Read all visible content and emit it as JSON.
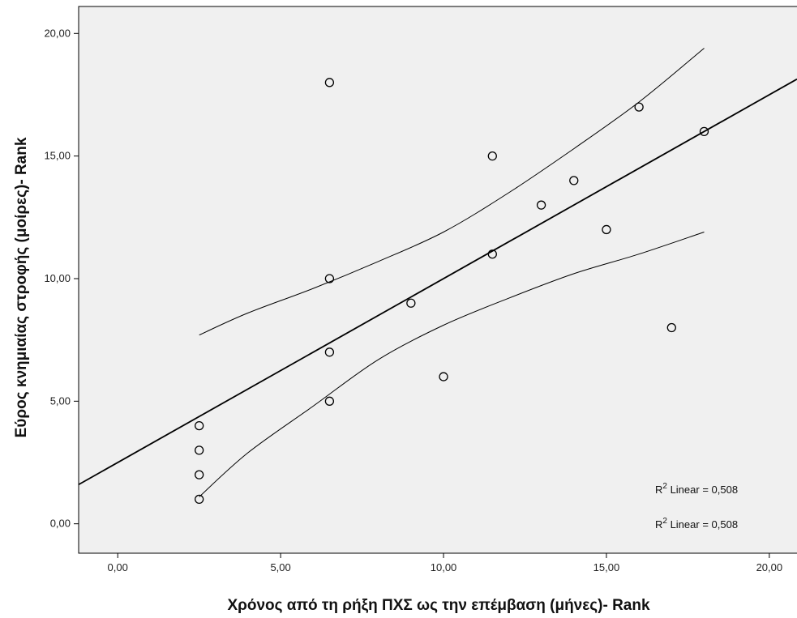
{
  "chart_data": {
    "type": "scatter",
    "xlabel": "Χρόνος από τη ρήξη ΠΧΣ ως την επέμβαση (μήνες)- Rank",
    "ylabel": "Εύρος κνημιαίας στροφής (μοίρες)- Rank",
    "xlim": [
      -1.2,
      20.85
    ],
    "ylim": [
      -1.2,
      21.1
    ],
    "x_ticks": [
      "0,00",
      "5,00",
      "10,00",
      "15,00",
      "20,00"
    ],
    "y_ticks": [
      "0,00",
      "5,00",
      "10,00",
      "15,00",
      "20,00"
    ],
    "grid": false,
    "points": [
      {
        "x": 2.5,
        "y": 1
      },
      {
        "x": 2.5,
        "y": 2
      },
      {
        "x": 2.5,
        "y": 3
      },
      {
        "x": 2.5,
        "y": 4
      },
      {
        "x": 6.5,
        "y": 5
      },
      {
        "x": 6.5,
        "y": 7
      },
      {
        "x": 6.5,
        "y": 10
      },
      {
        "x": 6.5,
        "y": 18
      },
      {
        "x": 9,
        "y": 9
      },
      {
        "x": 10,
        "y": 6
      },
      {
        "x": 11.5,
        "y": 11
      },
      {
        "x": 11.5,
        "y": 15
      },
      {
        "x": 13,
        "y": 13
      },
      {
        "x": 14,
        "y": 14
      },
      {
        "x": 15,
        "y": 12
      },
      {
        "x": 16,
        "y": 17
      },
      {
        "x": 17,
        "y": 8
      },
      {
        "x": 18,
        "y": 16
      }
    ],
    "fit_line": {
      "intercept": 2.5,
      "slope": 0.75
    },
    "confidence_band": {
      "x": [
        2.5,
        4,
        6,
        8,
        10,
        12,
        14,
        16,
        18
      ],
      "upper": [
        7.7,
        8.6,
        9.6,
        10.7,
        11.9,
        13.5,
        15.3,
        17.2,
        19.4
      ],
      "lower": [
        1.1,
        2.9,
        4.8,
        6.7,
        8.1,
        9.2,
        10.2,
        11.0,
        11.9
      ]
    },
    "annotations": [
      {
        "superscript_base": "R",
        "superscript": "2",
        "text": " Linear = 0,508"
      },
      {
        "superscript_base": "R",
        "superscript": "2",
        "text": " Linear = 0,508"
      }
    ],
    "colors": {
      "plot_background": "#f0f0f0",
      "marker_stroke": "#000000",
      "line": "#000000"
    }
  }
}
